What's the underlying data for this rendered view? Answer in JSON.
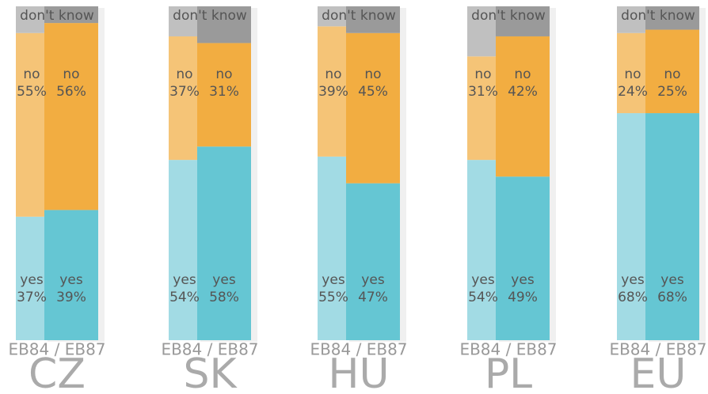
{
  "chart_data": {
    "type": "bar",
    "stacked": true,
    "categories": [
      "CZ",
      "SK",
      "HU",
      "PL",
      "EU"
    ],
    "wave_label": "EB84 / EB87",
    "ylim": [
      0,
      100
    ],
    "series": [
      {
        "name": "yes",
        "colors": [
          "#a2dbe4",
          "#65c6d3"
        ],
        "values": [
          [
            37,
            39
          ],
          [
            54,
            58
          ],
          [
            55,
            47
          ],
          [
            54,
            49
          ],
          [
            68,
            68
          ]
        ],
        "value_labels": [
          [
            "37%",
            "39%"
          ],
          [
            "54%",
            "58%"
          ],
          [
            "55%",
            "47%"
          ],
          [
            "54%",
            "49%"
          ],
          [
            "68%",
            "68%"
          ]
        ]
      },
      {
        "name": "no",
        "colors": [
          "#f5c477",
          "#f2ad41"
        ],
        "values": [
          [
            55,
            56
          ],
          [
            37,
            31
          ],
          [
            39,
            45
          ],
          [
            31,
            42
          ],
          [
            24,
            25
          ]
        ],
        "value_labels": [
          [
            "55%",
            "56%"
          ],
          [
            "37%",
            "31%"
          ],
          [
            "39%",
            "45%"
          ],
          [
            "31%",
            "42%"
          ],
          [
            "24%",
            "25%"
          ]
        ]
      },
      {
        "name": "don't know",
        "colors": [
          "#c0c0c0",
          "#9a9a9a"
        ],
        "values": [
          [
            8,
            5
          ],
          [
            9,
            11
          ],
          [
            6,
            8
          ],
          [
            15,
            9
          ],
          [
            8,
            7
          ]
        ]
      }
    ]
  }
}
